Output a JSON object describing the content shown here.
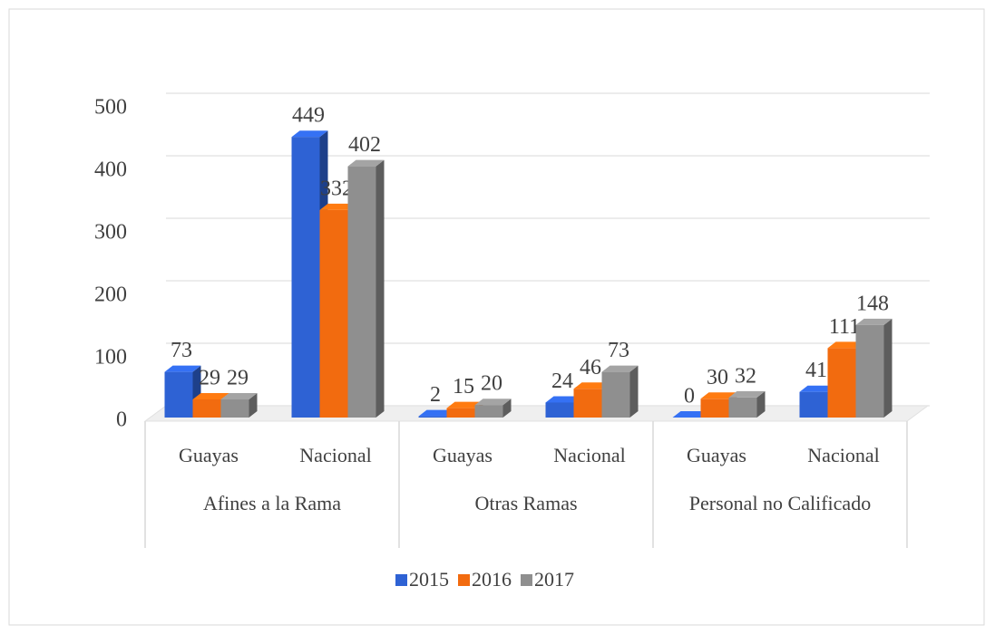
{
  "chart_data": {
    "type": "bar3d",
    "categories": [
      "Guayas",
      "Nacional",
      "Guayas",
      "Nacional",
      "Guayas",
      "Nacional"
    ],
    "groups": [
      "Afines a la Rama",
      "Otras Ramas",
      "Personal no Calificado"
    ],
    "series": [
      {
        "name": "2015",
        "color": "#2e62d4",
        "values": [
          73,
          449,
          2,
          24,
          0,
          41
        ]
      },
      {
        "name": "2016",
        "color": "#f26b0f",
        "values": [
          29,
          332,
          15,
          46,
          30,
          111
        ]
      },
      {
        "name": "2017",
        "color": "#8f8f8f",
        "values": [
          29,
          402,
          20,
          73,
          32,
          148
        ]
      }
    ],
    "ylim": [
      0,
      500
    ],
    "yticks": [
      0,
      100,
      200,
      300,
      400,
      500
    ],
    "grid": true,
    "legend": "bottom"
  }
}
